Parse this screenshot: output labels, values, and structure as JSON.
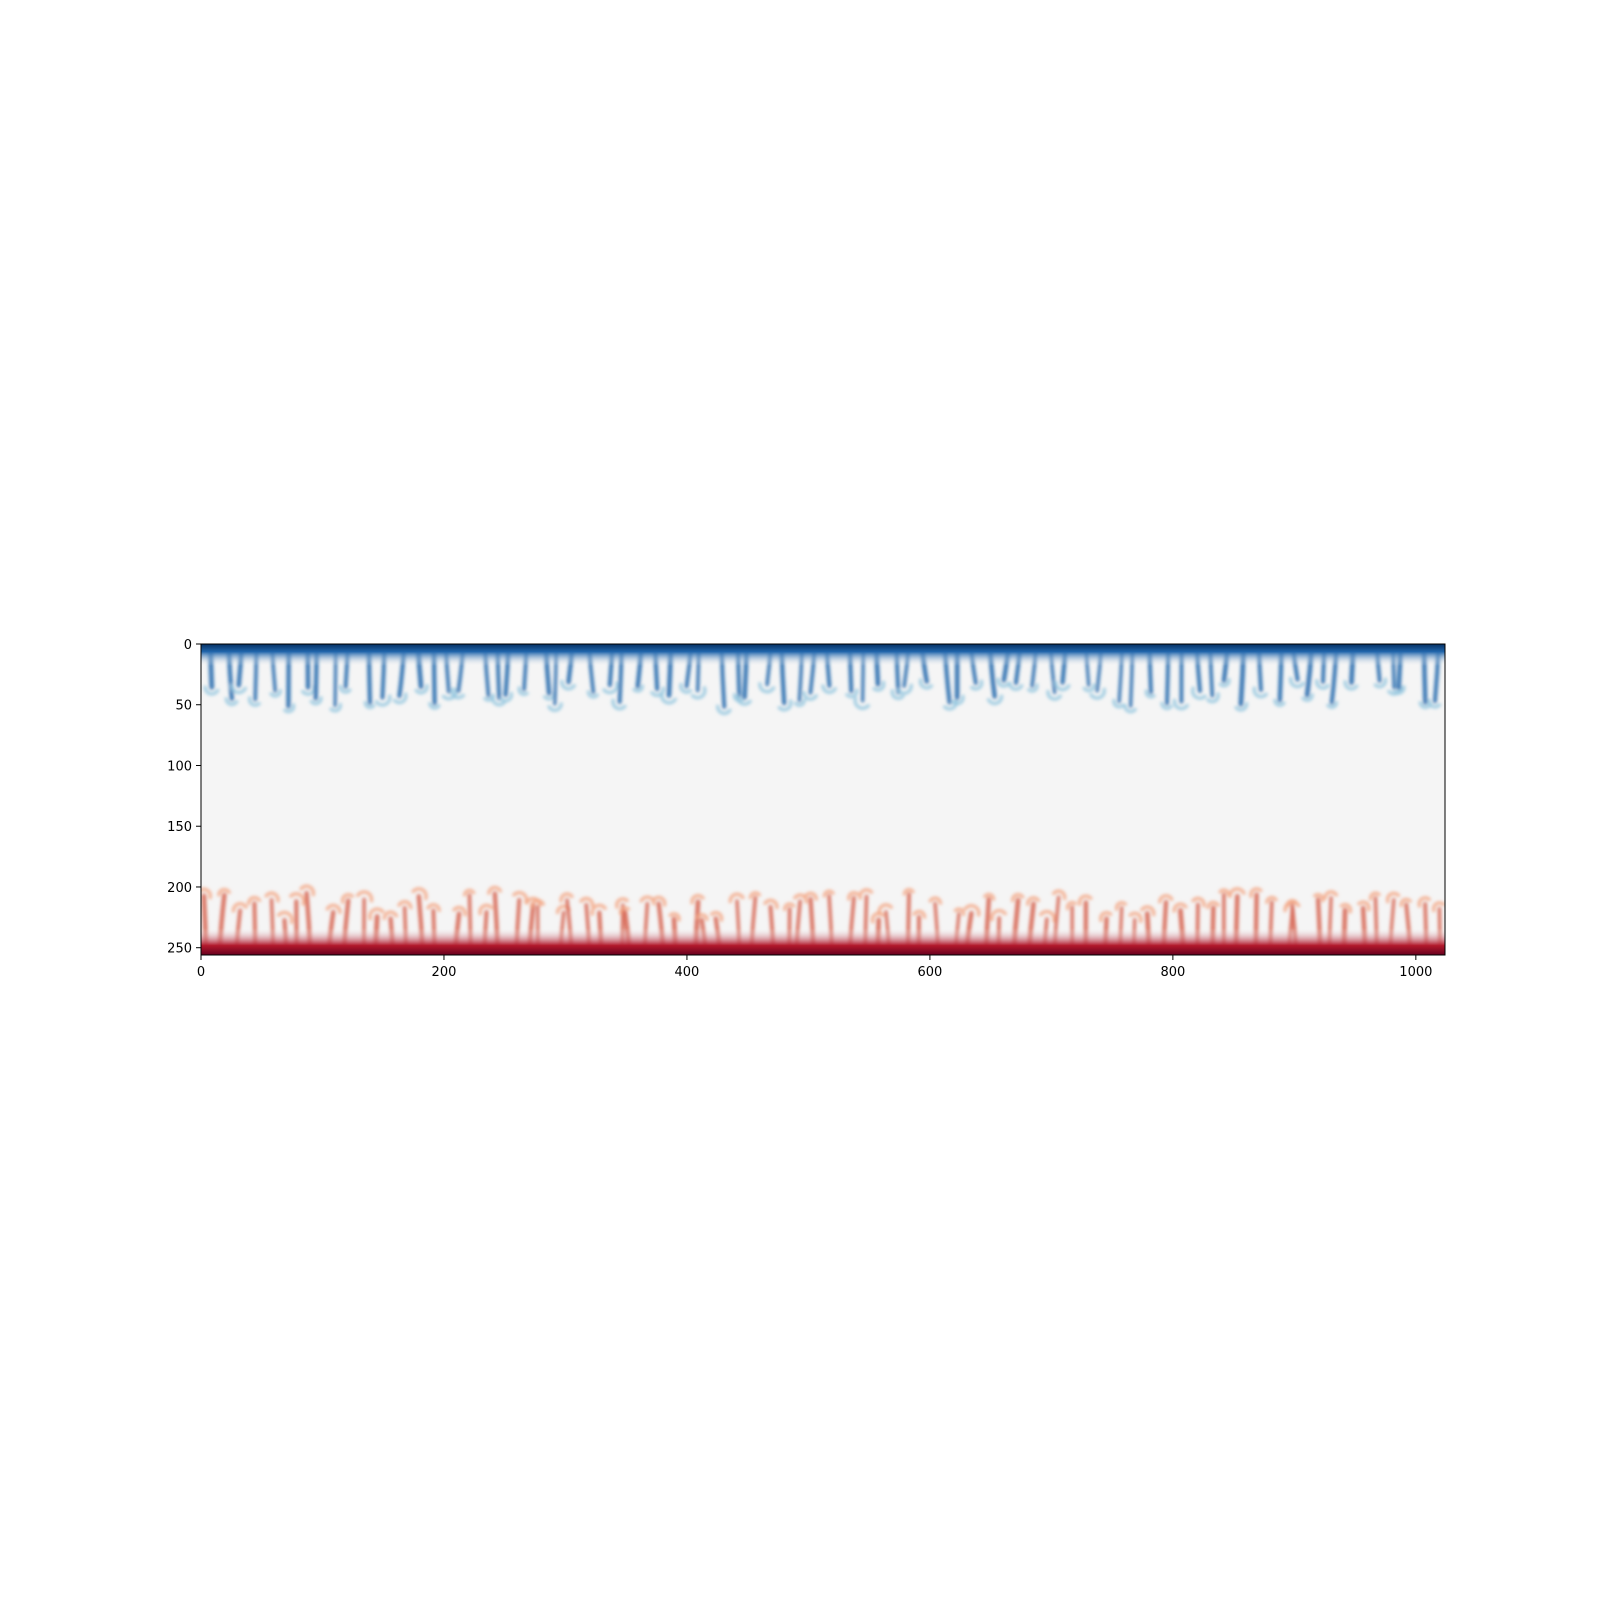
{
  "chart_data": {
    "type": "heatmap",
    "title": "",
    "xlabel": "",
    "ylabel": "",
    "grid": false,
    "colormap": "RdBu_r",
    "xlim": [
      0,
      1024
    ],
    "ylim": [
      256,
      0
    ],
    "x_ticks": [
      0,
      200,
      400,
      600,
      800,
      1000
    ],
    "y_ticks": [
      0,
      50,
      100,
      150,
      200,
      250
    ],
    "x_tick_labels": [
      "0",
      "200",
      "400",
      "600",
      "800",
      "1000"
    ],
    "y_tick_labels": [
      "0",
      "50",
      "100",
      "150",
      "200",
      "250"
    ],
    "field": {
      "description": "cold plumes descend from the top boundary, hot plumes rise from the bottom boundary; neutral interior",
      "top_boundary_layer_depth": 8,
      "top_plume_max_reach": 52,
      "bottom_boundary_layer_depth": 10,
      "bottom_plume_max_reach": 52,
      "plume_count_top": 78,
      "plume_count_bottom": 82,
      "colors": {
        "cold_dark": "#053061",
        "cold_mid": "#2166ac",
        "cold_light": "#92c5de",
        "neutral": "#f5f5f5",
        "hot_light": "#f4a582",
        "hot_mid": "#d6604d",
        "hot_dark": "#67001f"
      }
    }
  }
}
